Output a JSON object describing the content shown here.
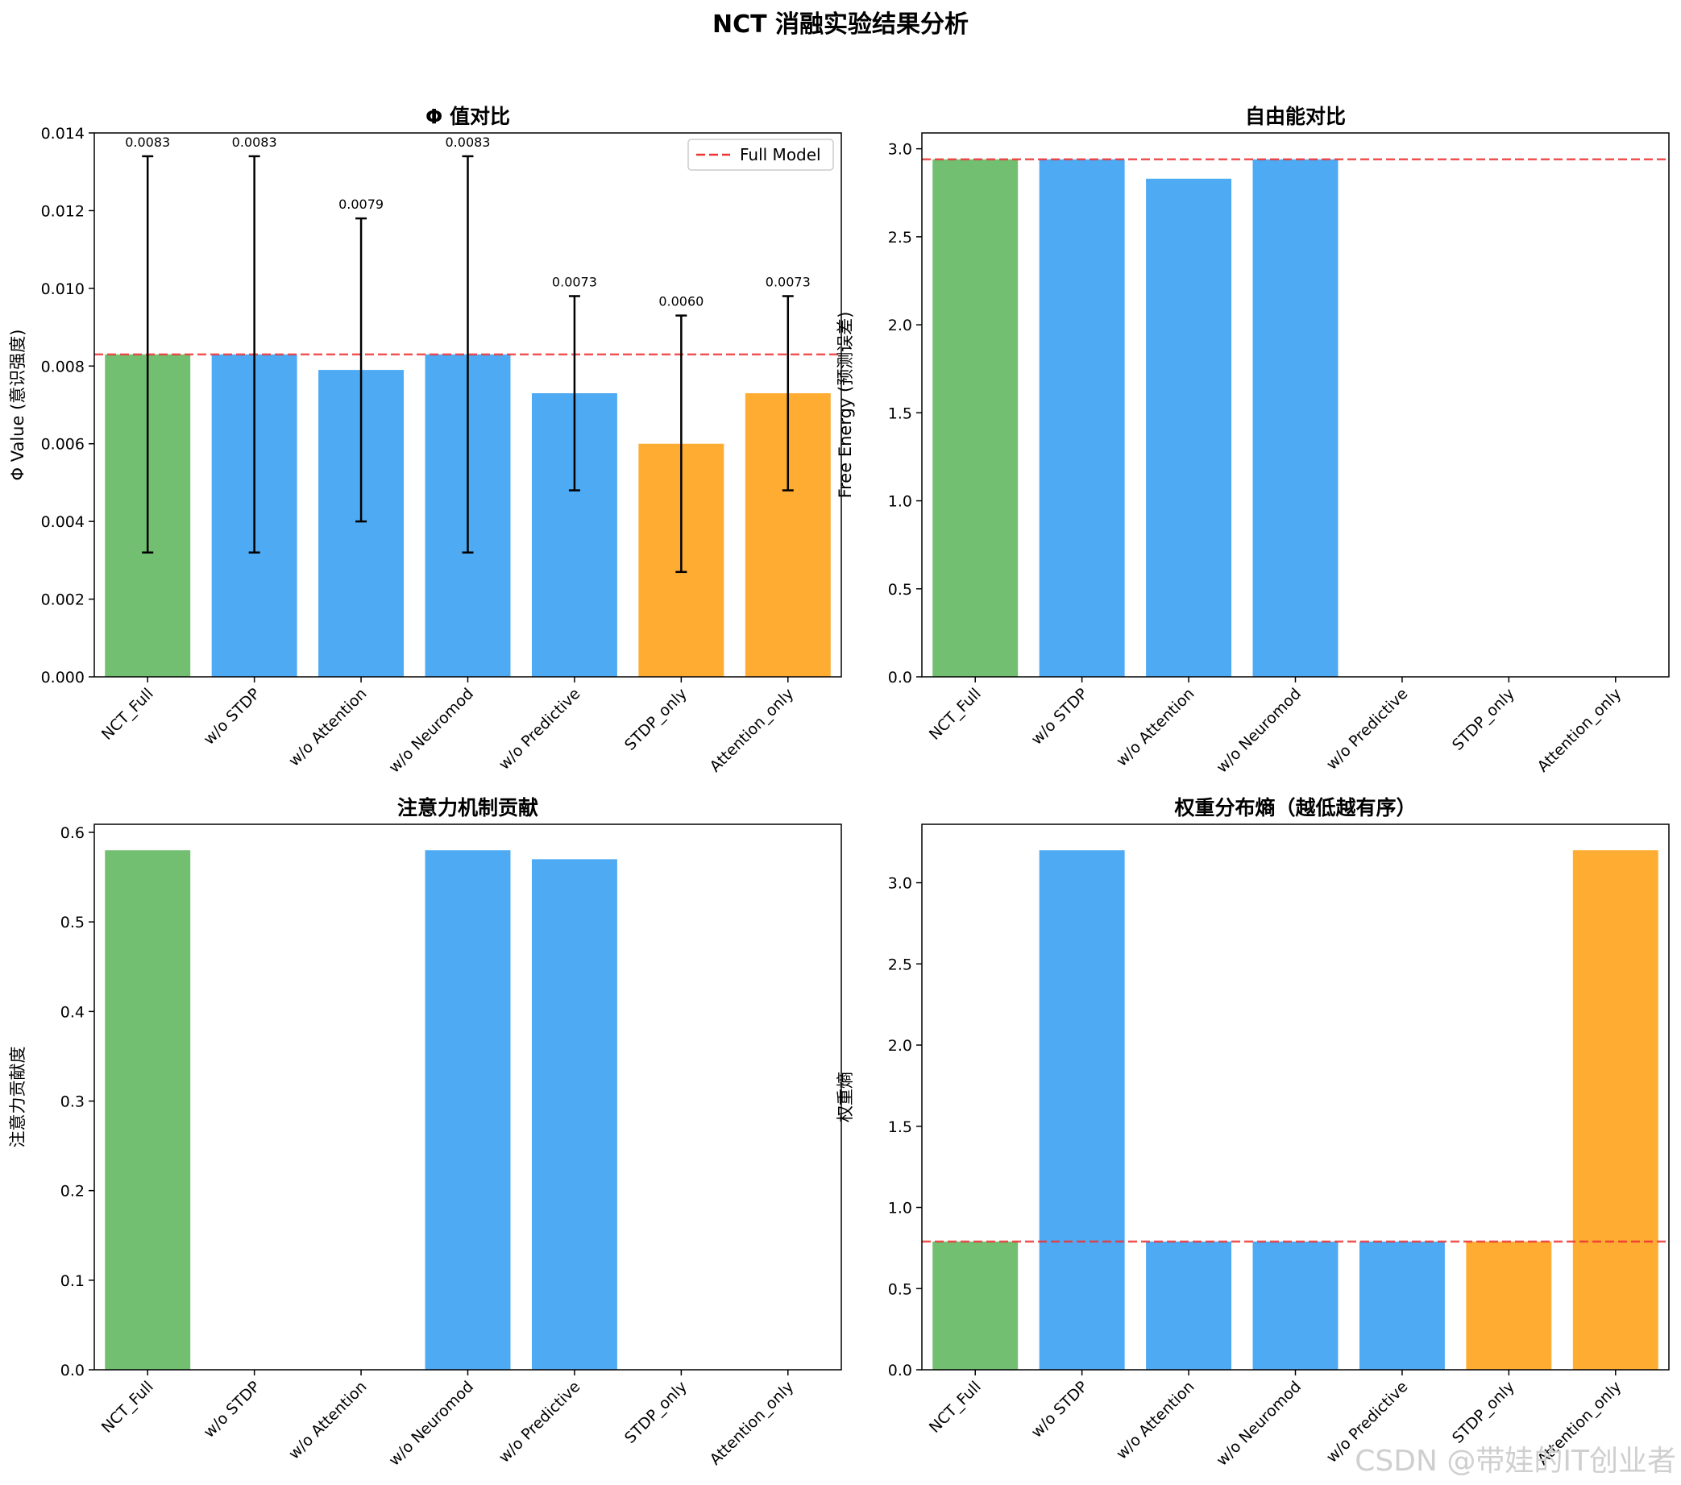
{
  "figure_title": "NCT 消融实验结果分析",
  "watermark": "CSDN @带娃的IT创业者",
  "colors": {
    "full": "#72bf72",
    "ablation": "#4eaaf3",
    "single": "#ffac33",
    "ref_line": "#ee3333",
    "errbar": "#000000"
  },
  "chart_data": [
    {
      "type": "bar",
      "title": "Φ 值对比",
      "ylabel": "Φ Value (意识强度)",
      "categories": [
        "NCT_Full",
        "w/o STDP",
        "w/o Attention",
        "w/o Neuromod",
        "w/o Predictive",
        "STDP_only",
        "Attention_only"
      ],
      "values": [
        0.0083,
        0.0083,
        0.0079,
        0.0083,
        0.0073,
        0.006,
        0.0073
      ],
      "errors": [
        0.0051,
        0.0051,
        0.0039,
        0.0051,
        0.0025,
        0.0033,
        0.0025
      ],
      "value_labels": [
        "0.0083",
        "0.0083",
        "0.0079",
        "0.0083",
        "0.0073",
        "0.0060",
        "0.0073"
      ],
      "bar_color_keys": [
        "full",
        "ablation",
        "ablation",
        "ablation",
        "ablation",
        "single",
        "single"
      ],
      "ylim": [
        0,
        0.014
      ],
      "yticks": [
        0,
        0.002,
        0.004,
        0.006,
        0.008,
        0.01,
        0.012,
        0.014
      ],
      "ytick_labels": [
        "0.000",
        "0.002",
        "0.004",
        "0.006",
        "0.008",
        "0.010",
        "0.012",
        "0.014"
      ],
      "ref_line": 0.0083,
      "legend": {
        "label": "Full Model",
        "placement": "top-right"
      }
    },
    {
      "type": "bar",
      "title": "自由能对比",
      "ylabel": "Free Energy (预测误差)",
      "categories": [
        "NCT_Full",
        "w/o STDP",
        "w/o Attention",
        "w/o Neuromod",
        "w/o Predictive",
        "STDP_only",
        "Attention_only"
      ],
      "values": [
        2.94,
        2.94,
        2.83,
        2.94,
        0,
        0,
        0
      ],
      "bar_color_keys": [
        "full",
        "ablation",
        "ablation",
        "ablation",
        "ablation",
        "single",
        "single"
      ],
      "ylim": [
        0,
        3.09
      ],
      "yticks": [
        0,
        0.5,
        1.0,
        1.5,
        2.0,
        2.5,
        3.0
      ],
      "ytick_labels": [
        "0.0",
        "0.5",
        "1.0",
        "1.5",
        "2.0",
        "2.5",
        "3.0"
      ],
      "ref_line": 2.94
    },
    {
      "type": "bar",
      "title": "注意力机制贡献",
      "ylabel": "注意力贡献度",
      "categories": [
        "NCT_Full",
        "w/o STDP",
        "w/o Attention",
        "w/o Neuromod",
        "w/o Predictive",
        "STDP_only",
        "Attention_only"
      ],
      "values": [
        0.58,
        0,
        0,
        0.58,
        0.57,
        0,
        0
      ],
      "bar_color_keys": [
        "full",
        "ablation",
        "ablation",
        "ablation",
        "ablation",
        "single",
        "single"
      ],
      "ylim": [
        0,
        0.609
      ],
      "yticks": [
        0,
        0.1,
        0.2,
        0.3,
        0.4,
        0.5,
        0.6
      ],
      "ytick_labels": [
        "0.0",
        "0.1",
        "0.2",
        "0.3",
        "0.4",
        "0.5",
        "0.6"
      ]
    },
    {
      "type": "bar",
      "title": "权重分布熵（越低越有序）",
      "ylabel": "权重熵",
      "categories": [
        "NCT_Full",
        "w/o STDP",
        "w/o Attention",
        "w/o Neuromod",
        "w/o Predictive",
        "STDP_only",
        "Attention_only"
      ],
      "values": [
        0.79,
        3.2,
        0.79,
        0.79,
        0.79,
        0.79,
        3.2
      ],
      "bar_color_keys": [
        "full",
        "ablation",
        "ablation",
        "ablation",
        "ablation",
        "single",
        "single"
      ],
      "ylim": [
        0,
        3.36
      ],
      "yticks": [
        0,
        0.5,
        1.0,
        1.5,
        2.0,
        2.5,
        3.0
      ],
      "ytick_labels": [
        "0.0",
        "0.5",
        "1.0",
        "1.5",
        "2.0",
        "2.5",
        "3.0"
      ],
      "ref_line": 0.79
    }
  ]
}
